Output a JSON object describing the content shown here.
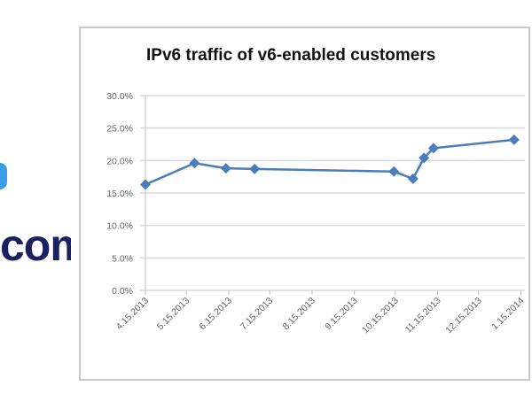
{
  "logo": {
    "text": "com"
  },
  "chart_data": {
    "type": "line",
    "title": "IPv6 traffic of v6-enabled customers",
    "xlabel": "",
    "ylabel": "",
    "x_ticks": [
      "4.15.2013",
      "5.15.2013",
      "6.15.2013",
      "7.15.2013",
      "8.15.2013",
      "9.15.2013",
      "10.15.2013",
      "11.15.2013",
      "12.15.2013",
      "1.15.2014"
    ],
    "x_tick_dates": [
      "2013-04-15",
      "2013-05-15",
      "2013-06-15",
      "2013-07-15",
      "2013-08-15",
      "2013-09-15",
      "2013-10-15",
      "2013-11-15",
      "2013-12-15",
      "2014-01-15"
    ],
    "y_ticks": [
      "0.0%",
      "5.0%",
      "10.0%",
      "15.0%",
      "20.0%",
      "25.0%",
      "30.0%"
    ],
    "ylim": [
      0,
      30
    ],
    "grid": true,
    "legend": "none",
    "series": [
      {
        "color": "#4a7ebb",
        "marker": "diamond",
        "x": [
          "2013-04-15",
          "2013-05-21",
          "2013-06-13",
          "2013-07-04",
          "2013-10-14",
          "2013-10-28",
          "2013-11-05",
          "2013-11-12",
          "2014-01-10"
        ],
        "values": [
          16.3,
          19.6,
          18.8,
          18.7,
          18.3,
          17.2,
          20.4,
          21.9,
          23.2
        ]
      }
    ]
  }
}
